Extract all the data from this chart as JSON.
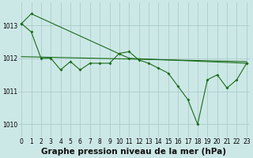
{
  "xlabel": "Graphe pression niveau de la mer (hPa)",
  "background_color": "#cce8e6",
  "grid_color": "#aaccca",
  "line_color": "#1a6b1a",
  "ylim": [
    1009.6,
    1013.7
  ],
  "xlim": [
    -0.3,
    23.3
  ],
  "yticks": [
    1010,
    1011,
    1012,
    1013
  ],
  "xticks": [
    0,
    1,
    2,
    3,
    4,
    5,
    6,
    7,
    8,
    9,
    10,
    11,
    12,
    13,
    14,
    15,
    16,
    17,
    18,
    19,
    20,
    21,
    22,
    23
  ],
  "series_wiggly": {
    "x": [
      0,
      1,
      2,
      3,
      4,
      5,
      6,
      7,
      8,
      9,
      10,
      11,
      12,
      13,
      14,
      15,
      16,
      17,
      18,
      19,
      20,
      21,
      22,
      23
    ],
    "y": [
      1013.05,
      1012.8,
      1012.0,
      1012.0,
      1011.65,
      1011.9,
      1011.65,
      1011.85,
      1011.85,
      1011.85,
      1012.15,
      1012.2,
      1011.95,
      1011.85,
      1011.7,
      1011.55,
      1011.15,
      1010.75,
      1010.0,
      1011.35,
      1011.5,
      1011.1,
      1011.35,
      1011.85
    ]
  },
  "series_steep": {
    "x": [
      0,
      1,
      11,
      23
    ],
    "y": [
      1013.05,
      1013.35,
      1012.0,
      1011.85
    ]
  },
  "series_flat": {
    "x": [
      0,
      23
    ],
    "y": [
      1012.05,
      1011.9
    ]
  },
  "title_fontsize": 7.5,
  "tick_fontsize": 5.5,
  "xlabel_fontsize": 7.5
}
